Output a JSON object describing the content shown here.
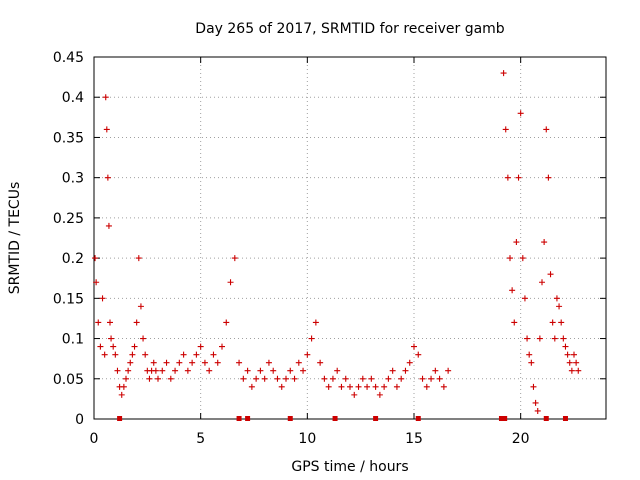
{
  "colors": {
    "series": "#cc0000",
    "grid": "#a0a0a0",
    "axis": "#000000"
  },
  "chart_data": {
    "type": "scatter",
    "title": "Day 265 of 2017, SRMTID for receiver gamb",
    "xlabel": "GPS time / hours",
    "ylabel": "SRMTID / TECUs",
    "xlim": [
      0,
      24
    ],
    "ylim": [
      0,
      0.45
    ],
    "xticks": [
      0,
      5,
      10,
      15,
      20
    ],
    "xtick_labels": [
      "0",
      "5",
      "10",
      "15",
      "20"
    ],
    "yticks": [
      0,
      0.05,
      0.1,
      0.15,
      0.2,
      0.25,
      0.3,
      0.35,
      0.4,
      0.45
    ],
    "ytick_labels": [
      "0",
      "0.05",
      "0.1",
      "0.15",
      "0.2",
      "0.25",
      "0.3",
      "0.35",
      "0.4",
      "0.45"
    ],
    "grid": true,
    "marker": "+",
    "series": [
      {
        "name": "SRMTID",
        "x": [
          0.05,
          0.1,
          0.2,
          0.3,
          0.4,
          0.5,
          0.55,
          0.6,
          0.65,
          0.7,
          0.75,
          0.8,
          0.9,
          1.0,
          1.1,
          1.2,
          1.3,
          1.4,
          1.5,
          1.6,
          1.7,
          1.8,
          1.9,
          2.0,
          2.1,
          2.2,
          2.3,
          2.4,
          2.5,
          2.6,
          2.7,
          2.8,
          2.9,
          3.0,
          3.2,
          3.4,
          3.6,
          3.8,
          4.0,
          4.2,
          4.4,
          4.6,
          4.8,
          5.0,
          5.2,
          5.4,
          5.6,
          5.8,
          6.0,
          6.2,
          6.4,
          6.6,
          6.8,
          7.0,
          7.2,
          7.4,
          7.6,
          7.8,
          8.0,
          8.2,
          8.4,
          8.6,
          8.8,
          9.0,
          9.2,
          9.4,
          9.6,
          9.8,
          10.0,
          10.2,
          10.4,
          10.6,
          10.8,
          11.0,
          11.2,
          11.4,
          11.6,
          11.8,
          12.0,
          12.2,
          12.4,
          12.6,
          12.8,
          13.0,
          13.2,
          13.4,
          13.6,
          13.8,
          14.0,
          14.2,
          14.4,
          14.6,
          14.8,
          15.0,
          15.2,
          15.4,
          15.6,
          15.8,
          16.0,
          16.2,
          16.4,
          16.6,
          19.2,
          19.3,
          19.4,
          19.5,
          19.6,
          19.7,
          19.8,
          19.9,
          20.0,
          20.1,
          20.2,
          20.3,
          20.4,
          20.5,
          20.6,
          20.7,
          20.8,
          20.9,
          21.0,
          21.1,
          21.2,
          21.3,
          21.4,
          21.5,
          21.6,
          21.7,
          21.8,
          21.9,
          22.0,
          22.1,
          22.2,
          22.3,
          22.4,
          22.5,
          22.6,
          22.7
        ],
        "y": [
          0.2,
          0.17,
          0.12,
          0.09,
          0.15,
          0.08,
          0.4,
          0.36,
          0.3,
          0.24,
          0.12,
          0.1,
          0.09,
          0.08,
          0.06,
          0.04,
          0.03,
          0.04,
          0.05,
          0.06,
          0.07,
          0.08,
          0.09,
          0.12,
          0.2,
          0.14,
          0.1,
          0.08,
          0.06,
          0.05,
          0.06,
          0.07,
          0.06,
          0.05,
          0.06,
          0.07,
          0.05,
          0.06,
          0.07,
          0.08,
          0.06,
          0.07,
          0.08,
          0.09,
          0.07,
          0.06,
          0.08,
          0.07,
          0.09,
          0.12,
          0.17,
          0.2,
          0.07,
          0.05,
          0.06,
          0.04,
          0.05,
          0.06,
          0.05,
          0.07,
          0.06,
          0.05,
          0.04,
          0.05,
          0.06,
          0.05,
          0.07,
          0.06,
          0.08,
          0.1,
          0.12,
          0.07,
          0.05,
          0.04,
          0.05,
          0.06,
          0.04,
          0.05,
          0.04,
          0.03,
          0.04,
          0.05,
          0.04,
          0.05,
          0.04,
          0.03,
          0.04,
          0.05,
          0.06,
          0.04,
          0.05,
          0.06,
          0.07,
          0.09,
          0.08,
          0.05,
          0.04,
          0.05,
          0.06,
          0.05,
          0.04,
          0.06,
          0.43,
          0.36,
          0.3,
          0.2,
          0.16,
          0.12,
          0.22,
          0.3,
          0.38,
          0.2,
          0.15,
          0.1,
          0.08,
          0.07,
          0.04,
          0.02,
          0.01,
          0.1,
          0.17,
          0.22,
          0.36,
          0.3,
          0.18,
          0.12,
          0.1,
          0.15,
          0.14,
          0.12,
          0.1,
          0.09,
          0.08,
          0.07,
          0.06,
          0.08,
          0.07,
          0.06
        ]
      }
    ],
    "gap_markers_x": [
      1.2,
      6.8,
      7.2,
      9.2,
      11.3,
      13.2,
      15.2,
      19.1,
      19.25,
      21.2,
      22.1
    ]
  }
}
